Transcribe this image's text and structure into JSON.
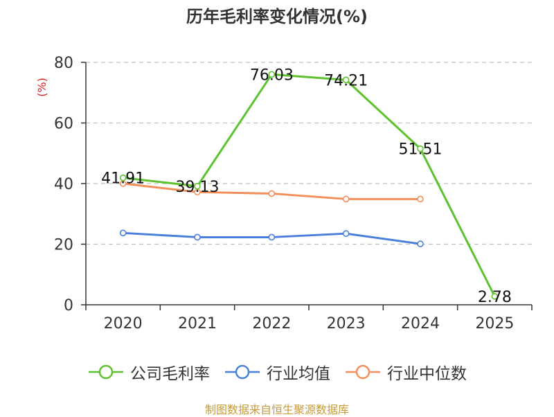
{
  "chart_data": {
    "type": "line",
    "title": "历年毛利率变化情况(%)",
    "ylabel": "(%)",
    "xlabel": "",
    "categories": [
      "2020",
      "2021",
      "2022",
      "2023",
      "2024",
      "2025"
    ],
    "ylim": [
      0,
      80
    ],
    "yticks": [
      0,
      20,
      40,
      60,
      80
    ],
    "grid": true,
    "legend_position": "bottom",
    "series": [
      {
        "name": "公司毛利率",
        "color": "#5ec22e",
        "values": [
          41.91,
          39.13,
          76.03,
          74.21,
          51.51,
          2.78
        ],
        "labels": [
          "41.91",
          "39.13",
          "76.03",
          "74.21",
          "51.51",
          "2.78"
        ]
      },
      {
        "name": "行业均值",
        "color": "#4a7fdb",
        "values": [
          23.7,
          22.3,
          22.3,
          23.5,
          20.1,
          null
        ]
      },
      {
        "name": "行业中位数",
        "color": "#f38f5a",
        "values": [
          40.0,
          37.2,
          36.7,
          34.9,
          34.9,
          null
        ]
      }
    ]
  },
  "source_text": "制图数据来自恒生聚源数据库",
  "colors": {
    "axis": "#333333",
    "grid": "#c0c0c0",
    "ylabel": "#e0181b",
    "source": "#c79a3a"
  }
}
